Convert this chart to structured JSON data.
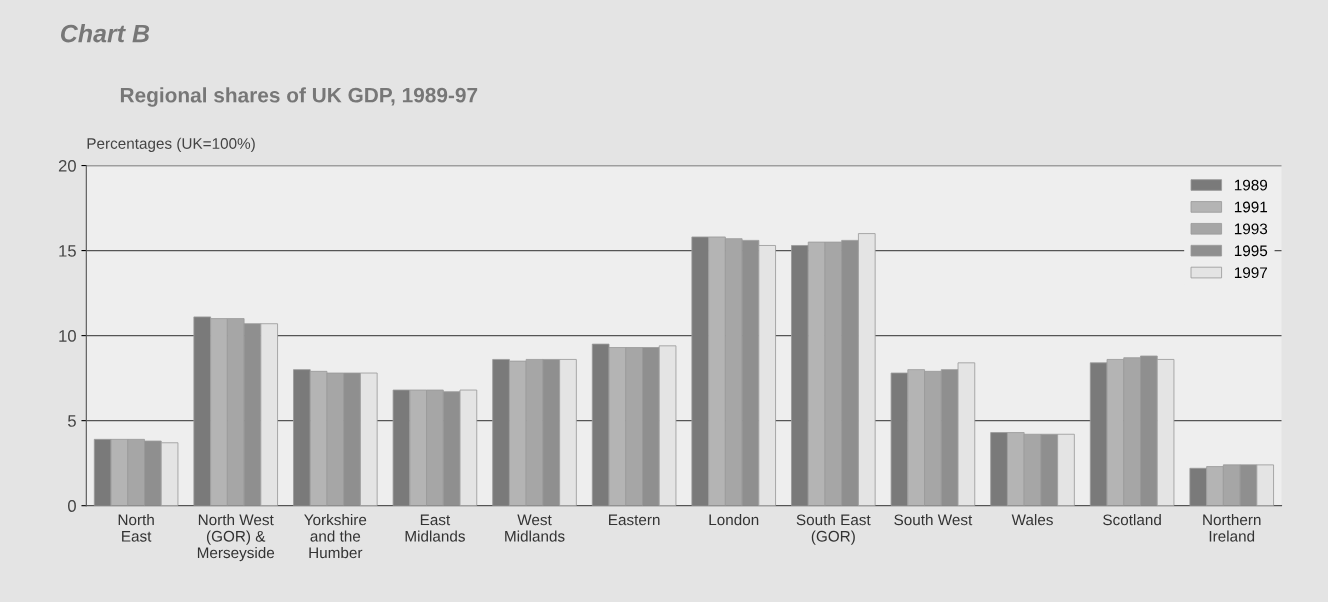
{
  "chart_data": {
    "type": "bar",
    "title": "Regional shares of UK GDP, 1989-97",
    "ylabel": "Percentages (UK=100%)",
    "annotations": [
      "Chart B"
    ],
    "categories": [
      "North\nEast",
      "North West\n(GOR) &\nMerseyside",
      "Yorkshire\nand the\nHumber",
      "East\nMidlands",
      "West\nMidlands",
      "Eastern",
      "London",
      "South East\n(GOR)",
      "South West",
      "Wales",
      "Scotland",
      "Northern\nIreland"
    ],
    "series": [
      {
        "name": "1989",
        "color": "#7a7a7a",
        "values": [
          3.9,
          11.1,
          8.0,
          6.8,
          8.6,
          9.5,
          15.8,
          15.3,
          7.8,
          4.3,
          8.4,
          2.2
        ]
      },
      {
        "name": "1991",
        "color": "#b4b4b4",
        "values": [
          3.9,
          11.0,
          7.9,
          6.8,
          8.5,
          9.3,
          15.8,
          15.5,
          8.0,
          4.3,
          8.6,
          2.3
        ]
      },
      {
        "name": "1993",
        "color": "#a6a6a6",
        "values": [
          3.9,
          11.0,
          7.8,
          6.8,
          8.6,
          9.3,
          15.7,
          15.5,
          7.9,
          4.2,
          8.7,
          2.4
        ]
      },
      {
        "name": "1995",
        "color": "#8f8f8f",
        "values": [
          3.8,
          10.7,
          7.8,
          6.7,
          8.6,
          9.3,
          15.6,
          15.6,
          8.0,
          4.2,
          8.8,
          2.4
        ]
      },
      {
        "name": "1997",
        "color": "#e4e4e4",
        "values": [
          3.7,
          10.7,
          7.8,
          6.8,
          8.6,
          9.4,
          15.3,
          16.0,
          8.4,
          4.2,
          8.6,
          2.4
        ]
      }
    ],
    "ylim": [
      0,
      20
    ],
    "yticks": [
      0,
      5,
      10,
      15,
      20
    ],
    "grid": "y",
    "legend": "top right"
  }
}
